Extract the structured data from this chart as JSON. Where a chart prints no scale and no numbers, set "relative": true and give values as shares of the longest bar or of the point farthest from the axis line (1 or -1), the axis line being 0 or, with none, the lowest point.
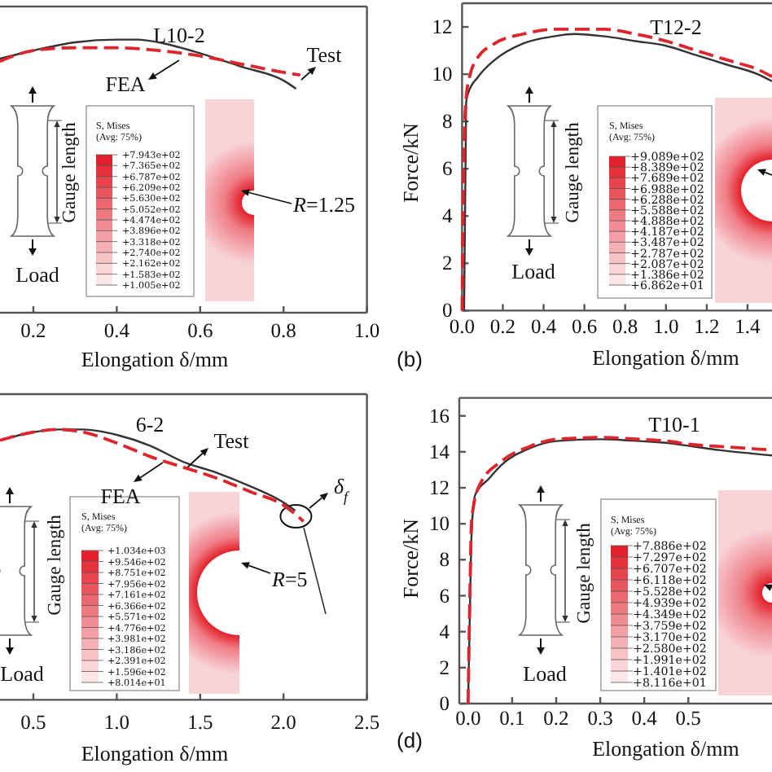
{
  "chart_data": [
    {
      "type": "line",
      "title": "L10-2",
      "xlabel": "Elongation δ/mm",
      "relative": true,
      "xlim": [
        0.12,
        1
      ],
      "xticks": [
        0.2,
        0.4,
        0.6,
        0.8,
        {
          "value": 1,
          "label": "1.0"
        }
      ],
      "series": [
        {
          "name": "Test",
          "color": "#333333",
          "line_style": "solid",
          "x": [
            0.12,
            0.2,
            0.3,
            0.4,
            0.45,
            0.5,
            0.6,
            0.7,
            0.8,
            0.83
          ],
          "values": [
            0.93,
            0.96,
            0.99,
            1,
            1,
            0.99,
            0.95,
            0.9,
            0.85,
            0.82
          ]
        },
        {
          "name": "FEA",
          "color": "#e0242c",
          "line_style": "dashed",
          "x": [
            0.12,
            0.2,
            0.3,
            0.4,
            0.5,
            0.6,
            0.7,
            0.8,
            0.84
          ],
          "values": [
            0.92,
            0.96,
            0.97,
            0.97,
            0.96,
            0.94,
            0.91,
            0.88,
            0.87
          ]
        }
      ],
      "annotations": [
        "Gauge length",
        "Load",
        "S, Mises",
        "(Avg: 75%)",
        "+7.943e+02",
        "+7.365e+02",
        "+6.787e+02",
        "+6.209e+02",
        "+5.630e+02",
        "+5.052e+02",
        "+4.474e+02",
        "+3.896e+02",
        "+3.318e+02",
        "+2.740e+02",
        "+2.162e+02",
        "+1.583e+02",
        "+1.005e+02",
        "R=1.25"
      ]
    },
    {
      "type": "line",
      "title": "T12-2",
      "xlabel": "Elongation δ/mm",
      "ylabel": "Force/kN",
      "xlim": [
        0,
        1.52
      ],
      "xticks": [
        {
          "value": 0,
          "label": "0.0"
        },
        0.2,
        0.4,
        0.6,
        0.8,
        {
          "value": 1,
          "label": "1.0"
        },
        1.2,
        1.4
      ],
      "ylim": [
        0,
        13
      ],
      "yticks": [
        0,
        2,
        4,
        6,
        8,
        10,
        12
      ],
      "series": [
        {
          "color": "#333333",
          "line_style": "solid",
          "x": [
            0.01,
            0.02,
            0.03,
            0.08,
            0.16,
            0.3,
            0.45,
            0.55,
            0.7,
            0.85,
            1,
            1.15,
            1.3,
            1.45,
            1.52
          ],
          "values": [
            0,
            8.8,
            9.2,
            9.9,
            10.6,
            11.3,
            11.6,
            11.7,
            11.6,
            11.4,
            11.2,
            10.8,
            10.4,
            10,
            9.7
          ]
        },
        {
          "color": "#e0242c",
          "line_style": "dashed",
          "x": [
            0,
            0.01,
            0.02,
            0.04,
            0.07,
            0.16,
            0.3,
            0.45,
            0.55,
            0.7,
            0.85,
            1,
            1.15,
            1.3,
            1.45,
            1.52
          ],
          "values": [
            0,
            7,
            9,
            10,
            10.6,
            11.3,
            11.7,
            11.9,
            11.9,
            11.9,
            11.7,
            11.4,
            11,
            10.6,
            10.2,
            9.9
          ]
        }
      ],
      "annotations": [
        "(b)",
        "Gauge length",
        "Load",
        "S, Mises",
        "(Avg: 75%)",
        "+9.089e+02",
        "+8.389e+02",
        "+7.689e+02",
        "+6.988e+02",
        "+6.288e+02",
        "+5.588e+02",
        "+4.888e+02",
        "+4.187e+02",
        "+3.487e+02",
        "+2.787e+02",
        "+2.087e+02",
        "+1.386e+02",
        "+6.862e+01"
      ]
    },
    {
      "type": "line",
      "title": "6-2",
      "xlabel": "Elongation δ/mm",
      "relative": true,
      "xlim": [
        0.3,
        2.5
      ],
      "xticks": [
        0.5,
        {
          "value": 1,
          "label": "1.0"
        },
        1.5,
        {
          "value": 2,
          "label": "2.0"
        },
        2.5
      ],
      "series": [
        {
          "name": "Test",
          "color": "#333333",
          "line_style": "solid",
          "x": [
            0.3,
            0.5,
            0.65,
            0.8,
            1,
            1.2,
            1.4,
            1.6,
            1.8,
            2,
            2.07
          ],
          "values": [
            0.96,
            0.99,
            1,
            1,
            0.98,
            0.94,
            0.88,
            0.84,
            0.79,
            0.73,
            0.7
          ]
        },
        {
          "name": "FEA",
          "color": "#e0242c",
          "line_style": "dashed",
          "x": [
            0.3,
            0.5,
            0.65,
            0.8,
            1,
            1.2,
            1.4,
            1.6,
            1.8,
            2,
            2.12
          ],
          "values": [
            0.96,
            0.99,
            1,
            0.99,
            0.95,
            0.9,
            0.86,
            0.82,
            0.77,
            0.72,
            0.66
          ]
        }
      ],
      "annotations": [
        "Gauge length",
        "Load",
        "S, Mises",
        "(Avg: 75%)",
        "+1.034e+03",
        "+9.546e+02",
        "+8.751e+02",
        "+7.956e+02",
        "+7.161e+02",
        "+6.366e+02",
        "+5.571e+02",
        "+4.776e+02",
        "+3.981e+02",
        "+3.186e+02",
        "+2.391e+02",
        "+1.596e+02",
        "+8.014e+01",
        "R=5",
        "δ$_{f}$"
      ]
    },
    {
      "type": "line",
      "title": "T10-1",
      "xlabel": "Elongation δ/mm",
      "ylabel": "Force/kN",
      "xlim": [
        -0.02,
        0.69
      ],
      "xticks": [
        {
          "value": 0,
          "label": "0.0"
        },
        0.1,
        0.2,
        0.3,
        0.4,
        0.5
      ],
      "ylim": [
        0,
        17
      ],
      "yticks": [
        0,
        2,
        4,
        6,
        8,
        10,
        12,
        14,
        16
      ],
      "series": [
        {
          "color": "#333333",
          "line_style": "solid",
          "x": [
            0,
            0.004,
            0.008,
            0.016,
            0.047,
            0.077,
            0.14,
            0.2,
            0.3,
            0.39,
            0.45,
            0.51,
            0.57,
            0.69
          ],
          "values": [
            0,
            5,
            9.5,
            11.6,
            12.5,
            13.3,
            14.2,
            14.6,
            14.7,
            14.6,
            14.5,
            14.3,
            14.1,
            13.8
          ]
        },
        {
          "color": "#e0242c",
          "line_style": "dashed",
          "x": [
            0,
            0.004,
            0.008,
            0.025,
            0.077,
            0.14,
            0.2,
            0.3,
            0.39,
            0.45,
            0.51,
            0.57,
            0.69
          ],
          "values": [
            0,
            6,
            10.2,
            12.1,
            13.5,
            14.3,
            14.7,
            14.8,
            14.7,
            14.6,
            14.4,
            14.3,
            14.1
          ]
        }
      ],
      "annotations": [
        "(d)",
        "Gauge length",
        "Load",
        "S, Mises",
        "(Avg: 75%)",
        "+7.886e+02",
        "+7.297e+02",
        "+6.707e+02",
        "+6.118e+02",
        "+5.528e+02",
        "+4.939e+02",
        "+4.349e+02",
        "+3.759e+02",
        "+3.170e+02",
        "+2.580e+02",
        "+1.991e+02",
        "+1.401e+02",
        "+8.116e+01"
      ]
    }
  ]
}
